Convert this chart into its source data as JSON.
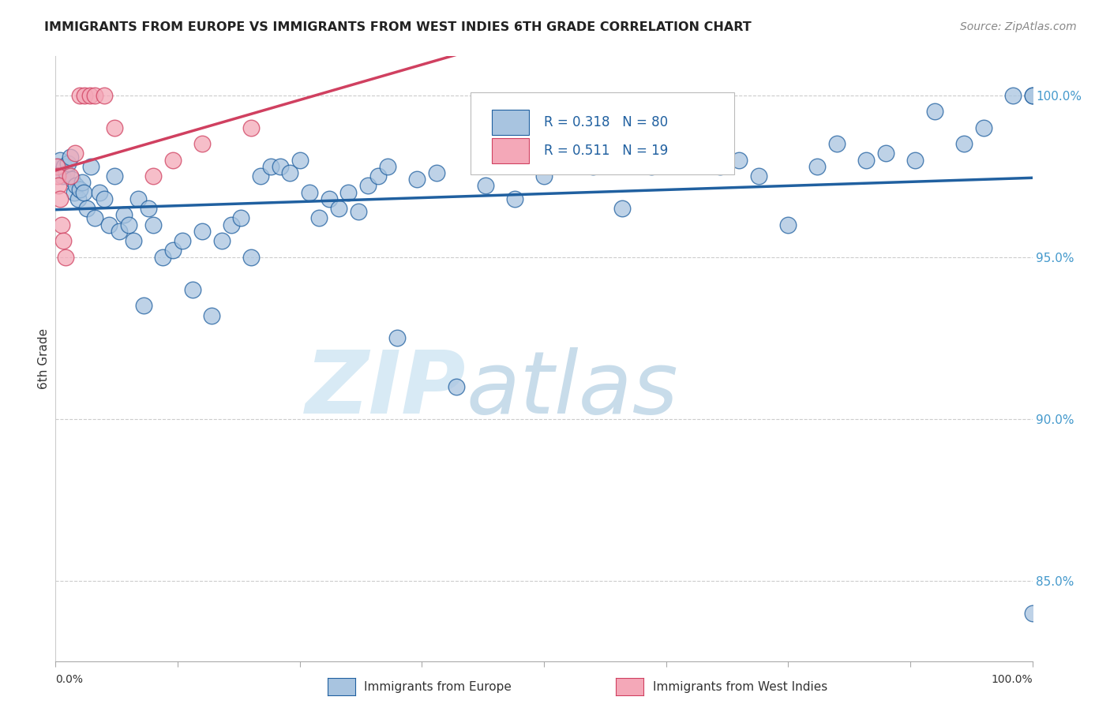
{
  "title": "IMMIGRANTS FROM EUROPE VS IMMIGRANTS FROM WEST INDIES 6TH GRADE CORRELATION CHART",
  "source": "Source: ZipAtlas.com",
  "ylabel": "6th Grade",
  "xlim": [
    0,
    100
  ],
  "ylim": [
    82.5,
    101.2
  ],
  "blue_R": 0.318,
  "blue_N": 80,
  "pink_R": 0.511,
  "pink_N": 19,
  "legend_label_blue": "Immigrants from Europe",
  "legend_label_pink": "Immigrants from West Indies",
  "blue_color": "#a8c4e0",
  "pink_color": "#f4a8b8",
  "blue_line_color": "#2060a0",
  "pink_line_color": "#d04060",
  "blue_scatter_x": [
    0.3,
    0.5,
    0.7,
    0.9,
    1.1,
    1.3,
    1.5,
    1.7,
    1.9,
    2.1,
    2.3,
    2.5,
    2.7,
    2.9,
    3.2,
    3.6,
    4.0,
    4.5,
    5.0,
    5.5,
    6.0,
    6.5,
    7.0,
    7.5,
    8.0,
    8.5,
    9.0,
    9.5,
    10.0,
    11.0,
    12.0,
    13.0,
    14.0,
    15.0,
    16.0,
    17.0,
    18.0,
    19.0,
    20.0,
    21.0,
    22.0,
    23.0,
    24.0,
    25.0,
    26.0,
    27.0,
    28.0,
    29.0,
    30.0,
    31.0,
    32.0,
    33.0,
    34.0,
    35.0,
    37.0,
    39.0,
    41.0,
    44.0,
    47.0,
    50.0,
    55.0,
    58.0,
    61.0,
    65.0,
    68.0,
    70.0,
    72.0,
    75.0,
    78.0,
    80.0,
    83.0,
    85.0,
    88.0,
    90.0,
    93.0,
    95.0,
    98.0,
    100.0,
    100.0,
    100.0
  ],
  "blue_scatter_y": [
    97.8,
    98.0,
    97.5,
    97.8,
    97.6,
    97.9,
    98.1,
    97.4,
    97.0,
    97.2,
    96.8,
    97.1,
    97.3,
    97.0,
    96.5,
    97.8,
    96.2,
    97.0,
    96.8,
    96.0,
    97.5,
    95.8,
    96.3,
    96.0,
    95.5,
    96.8,
    93.5,
    96.5,
    96.0,
    95.0,
    95.2,
    95.5,
    94.0,
    95.8,
    93.2,
    95.5,
    96.0,
    96.2,
    95.0,
    97.5,
    97.8,
    97.8,
    97.6,
    98.0,
    97.0,
    96.2,
    96.8,
    96.5,
    97.0,
    96.4,
    97.2,
    97.5,
    97.8,
    92.5,
    97.4,
    97.6,
    91.0,
    97.2,
    96.8,
    97.5,
    97.8,
    96.5,
    97.8,
    98.2,
    97.8,
    98.0,
    97.5,
    96.0,
    97.8,
    98.5,
    98.0,
    98.2,
    98.0,
    99.5,
    98.5,
    99.0,
    100.0,
    100.0,
    100.0,
    84.0
  ],
  "pink_scatter_x": [
    0.1,
    0.2,
    0.3,
    0.5,
    0.6,
    0.8,
    1.0,
    1.5,
    2.0,
    2.5,
    3.0,
    3.5,
    4.0,
    5.0,
    6.0,
    10.0,
    12.0,
    15.0,
    20.0
  ],
  "pink_scatter_y": [
    97.8,
    97.5,
    97.2,
    96.8,
    96.0,
    95.5,
    95.0,
    97.5,
    98.2,
    100.0,
    100.0,
    100.0,
    100.0,
    100.0,
    99.0,
    97.5,
    98.0,
    98.5,
    99.0
  ],
  "watermark_zip": "ZIP",
  "watermark_atlas": "atlas",
  "watermark_color": "#d8eaf5",
  "background_color": "#ffffff",
  "grid_color": "#cccccc",
  "y_tick_pos": [
    85,
    90,
    95,
    100
  ],
  "y_tick_labels": [
    "85.0%",
    "90.0%",
    "95.0%",
    "100.0%"
  ]
}
